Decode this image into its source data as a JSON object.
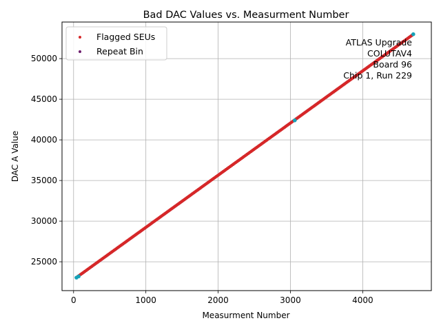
{
  "chart_data": {
    "type": "scatter",
    "title": "Bad DAC Values vs. Measurment Number",
    "xlabel": "Measurment Number",
    "ylabel": "DAC A Value",
    "xlim": [
      -160,
      4950
    ],
    "ylim": [
      21450,
      54500
    ],
    "xticks": [
      0,
      1000,
      2000,
      3000,
      4000
    ],
    "yticks": [
      25000,
      30000,
      35000,
      40000,
      45000,
      50000
    ],
    "xtick_labels": [
      "0",
      "1000",
      "2000",
      "3000",
      4000
    ],
    "ytick_labels": [
      "25000",
      "30000",
      "35000",
      "40000",
      "45000",
      "50000"
    ],
    "grid": true,
    "legend": {
      "position": "top-left",
      "entries": [
        "Flagged SEUs",
        "Repeat Bin"
      ]
    },
    "annotation": {
      "position": "top-right",
      "lines": [
        "ATLAS Upgrade",
        "COLUTAV4",
        "Board 96",
        "Chip 1, Run 229"
      ]
    },
    "series": [
      {
        "name": "Repeat Bin",
        "color": "#6e1f6e",
        "x_start": 40,
        "x_end": 4700,
        "y_start": 23050,
        "y_end": 53000,
        "points": 240
      },
      {
        "name": "Flagged SEUs",
        "color": "#d62728",
        "x_start": 60,
        "x_end": 4680,
        "y_start": 23200,
        "y_end": 52850,
        "points": 240
      },
      {
        "name": "",
        "color": "#17a2b8",
        "x_values": [
          40,
          70,
          3060,
          4700
        ],
        "y_values": [
          23050,
          23200,
          42400,
          53000
        ]
      }
    ]
  },
  "colors": {
    "grid": "#b0b0b0",
    "axes": "#000000",
    "flagged": "#d62728",
    "repeat": "#6e1f6e",
    "endpoints": "#17a2b8"
  }
}
